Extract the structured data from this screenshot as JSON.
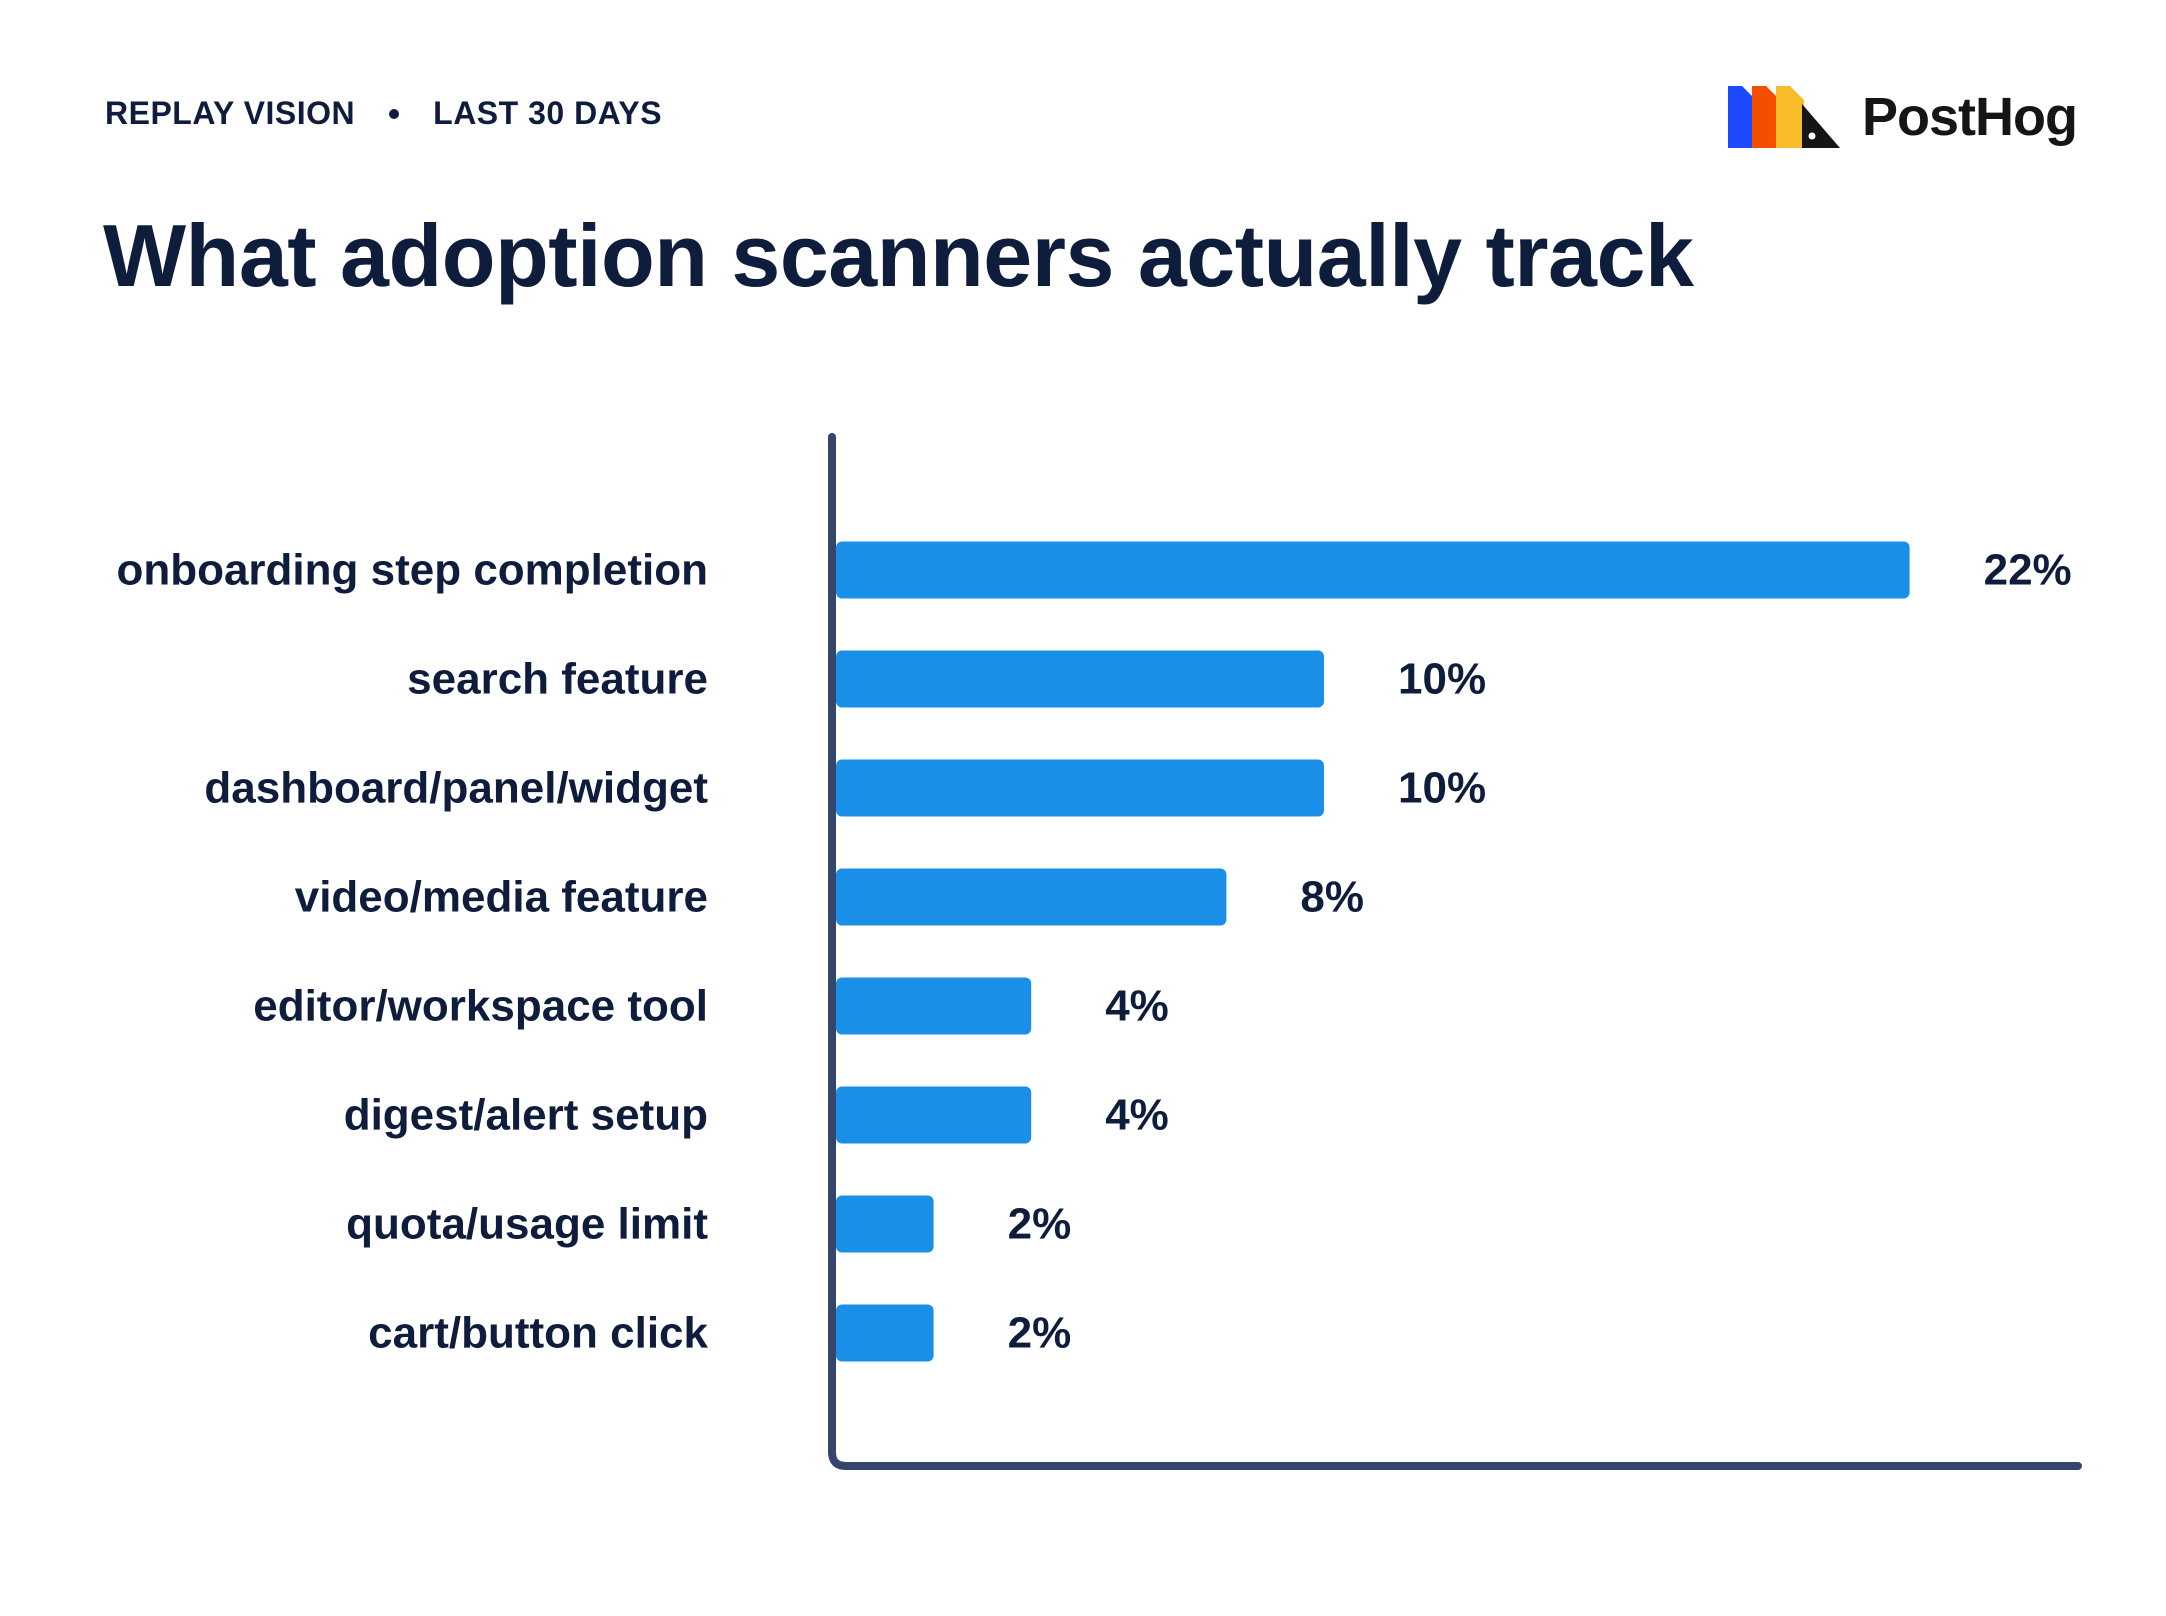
{
  "header": {
    "source": "REPLAY VISION",
    "period": "LAST 30 DAYS"
  },
  "title": "What adoption scanners actually track",
  "logo": {
    "wordmark": "PostHog",
    "icon": "posthog-hedgehog-logo-icon"
  },
  "colors": {
    "bar": "#1a8fe8",
    "text": "#0f1d3d",
    "axis": "#34466b"
  },
  "chart_data": {
    "type": "bar",
    "orientation": "horizontal",
    "categories": [
      "onboarding step completion",
      "search feature",
      "dashboard/panel/widget",
      "video/media feature",
      "editor/workspace tool",
      "digest/alert setup",
      "quota/usage limit",
      "cart/button click"
    ],
    "values": [
      22,
      10,
      10,
      8,
      4,
      4,
      2,
      2
    ],
    "value_labels": [
      "22%",
      "10%",
      "10%",
      "8%",
      "4%",
      "4%",
      "2%",
      "2%"
    ],
    "unit": "%",
    "xlim": [
      0,
      25
    ],
    "grid": false,
    "legend": "none"
  }
}
